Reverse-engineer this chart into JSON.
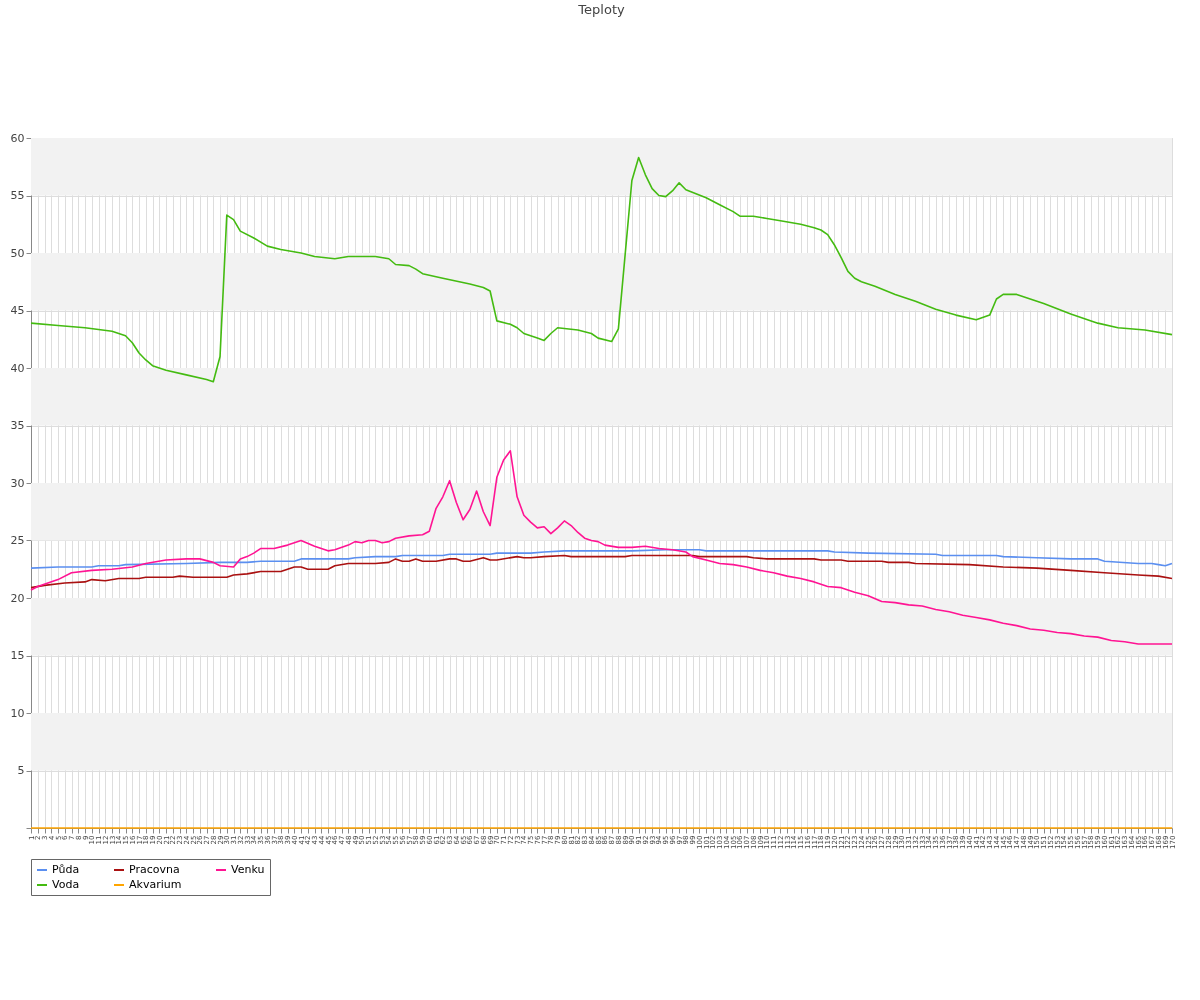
{
  "chart_data": {
    "type": "line",
    "title": "Teploty",
    "xlim": [
      1,
      170
    ],
    "xticks": [
      1,
      2,
      3,
      4,
      5,
      6,
      7,
      8,
      9,
      10,
      11,
      12,
      13,
      14,
      15,
      16,
      17,
      18,
      19,
      20,
      21,
      22,
      23,
      24,
      25,
      26,
      27,
      28,
      29,
      30,
      31,
      32,
      33,
      34,
      35,
      36,
      37,
      38,
      39,
      40,
      41,
      42,
      43,
      44,
      45,
      46,
      47,
      48,
      49,
      50,
      51,
      52,
      53,
      54,
      55,
      56,
      57,
      58,
      59,
      60,
      61,
      62,
      63,
      64,
      65,
      66,
      67,
      68,
      69,
      70,
      71,
      72,
      73,
      74,
      75,
      76,
      77,
      78,
      79,
      80,
      81,
      82,
      83,
      84,
      85,
      86,
      87,
      88,
      89,
      90,
      91,
      92,
      93,
      94,
      95,
      96,
      97,
      98,
      99,
      100,
      101,
      102,
      103,
      104,
      105,
      106,
      107,
      108,
      109,
      110,
      111,
      112,
      113,
      114,
      115,
      116,
      117,
      118,
      119,
      120,
      121,
      122,
      123,
      124,
      125,
      126,
      127,
      128,
      129,
      130,
      131,
      132,
      133,
      134,
      135,
      136,
      137,
      138,
      139,
      140,
      141,
      142,
      143,
      144,
      145,
      146,
      147,
      148,
      149,
      150,
      151,
      152,
      153,
      154,
      155,
      156,
      157,
      158,
      159,
      160,
      161,
      162,
      163,
      164,
      165,
      166,
      167,
      168,
      169,
      170
    ],
    "ylim": [
      0,
      60
    ],
    "yticks": [
      {
        "value": 0,
        "label": null
      },
      5,
      10,
      15,
      20,
      25,
      30,
      35,
      40,
      45,
      50,
      55,
      60
    ],
    "grid": true,
    "legend": "bottom",
    "line_style": "solid",
    "bands": [
      {
        "axis": "y",
        "from": 5,
        "to": 10,
        "color": "#f2f2f2"
      },
      {
        "axis": "y",
        "from": 15,
        "to": 20,
        "color": "#f2f2f2"
      },
      {
        "axis": "y",
        "from": 25,
        "to": 30,
        "color": "#f2f2f2"
      },
      {
        "axis": "y",
        "from": 35,
        "to": 40,
        "color": "#f2f2f2"
      },
      {
        "axis": "y",
        "from": 45,
        "to": 50,
        "color": "#f2f2f2"
      },
      {
        "axis": "y",
        "from": 55,
        "to": 60,
        "color": "#f2f2f2"
      }
    ],
    "series": [
      {
        "name": "Půda",
        "color": "#5b8ff0",
        "x": [
          1,
          5,
          10,
          11,
          14,
          15,
          24,
          29,
          33,
          35,
          40,
          41,
          48,
          49,
          52,
          55,
          56,
          62,
          63,
          69,
          70,
          75,
          77,
          80,
          90,
          95,
          100,
          101,
          119,
          120,
          125,
          135,
          136,
          144,
          145,
          150,
          155,
          159,
          160,
          165,
          167,
          168,
          169,
          170
        ],
        "values": [
          22.6,
          22.7,
          22.7,
          22.8,
          22.8,
          22.9,
          23.0,
          23.1,
          23.1,
          23.2,
          23.2,
          23.4,
          23.4,
          23.5,
          23.6,
          23.6,
          23.7,
          23.7,
          23.8,
          23.8,
          23.9,
          23.9,
          24.0,
          24.1,
          24.1,
          24.2,
          24.2,
          24.1,
          24.1,
          24.0,
          23.9,
          23.8,
          23.7,
          23.7,
          23.6,
          23.5,
          23.4,
          23.4,
          23.2,
          23.0,
          23.0,
          22.9,
          22.8,
          23.0
        ]
      },
      {
        "name": "Pracovna",
        "color": "#aa1111",
        "x": [
          1,
          3,
          6,
          9,
          10,
          12,
          14,
          17,
          18,
          22,
          23,
          25,
          30,
          31,
          33,
          35,
          38,
          39,
          40,
          41,
          42,
          45,
          46,
          48,
          52,
          54,
          55,
          56,
          57,
          58,
          59,
          61,
          63,
          64,
          65,
          66,
          68,
          69,
          70,
          73,
          74,
          75,
          77,
          80,
          81,
          89,
          90,
          99,
          100,
          107,
          108,
          110,
          117,
          118,
          121,
          122,
          127,
          128,
          131,
          132,
          140,
          145,
          150,
          155,
          160,
          165,
          168,
          170
        ],
        "values": [
          20.9,
          21.1,
          21.3,
          21.4,
          21.6,
          21.5,
          21.7,
          21.7,
          21.8,
          21.8,
          21.9,
          21.8,
          21.8,
          22.0,
          22.1,
          22.3,
          22.3,
          22.5,
          22.7,
          22.7,
          22.5,
          22.5,
          22.8,
          23.0,
          23.0,
          23.1,
          23.4,
          23.2,
          23.2,
          23.4,
          23.2,
          23.2,
          23.4,
          23.4,
          23.2,
          23.2,
          23.5,
          23.3,
          23.3,
          23.6,
          23.5,
          23.5,
          23.6,
          23.7,
          23.6,
          23.6,
          23.7,
          23.7,
          23.6,
          23.6,
          23.5,
          23.4,
          23.4,
          23.3,
          23.3,
          23.2,
          23.2,
          23.1,
          23.1,
          23.0,
          22.9,
          22.7,
          22.6,
          22.4,
          22.2,
          22.0,
          21.9,
          21.7
        ]
      },
      {
        "name": "Venku",
        "color": "#ff1493",
        "x": [
          1,
          2,
          5,
          7,
          10,
          13,
          16,
          18,
          21,
          24,
          26,
          28,
          29,
          31,
          32,
          33,
          34,
          35,
          37,
          39,
          41,
          43,
          45,
          46,
          48,
          49,
          50,
          51,
          52,
          53,
          54,
          55,
          57,
          59,
          60,
          61,
          62,
          63,
          64,
          65,
          66,
          67,
          68,
          69,
          70,
          71,
          72,
          73,
          74,
          75,
          76,
          77,
          78,
          79,
          80,
          81,
          82,
          83,
          84,
          85,
          86,
          88,
          90,
          92,
          94,
          96,
          98,
          99,
          101,
          103,
          105,
          107,
          109,
          111,
          113,
          115,
          117,
          119,
          121,
          123,
          125,
          127,
          129,
          131,
          133,
          135,
          137,
          139,
          141,
          143,
          145,
          147,
          149,
          151,
          153,
          155,
          157,
          159,
          161,
          163,
          165,
          167,
          170
        ],
        "values": [
          20.7,
          21.0,
          21.6,
          22.2,
          22.4,
          22.5,
          22.7,
          23.0,
          23.3,
          23.4,
          23.4,
          23.1,
          22.8,
          22.7,
          23.4,
          23.6,
          23.9,
          24.3,
          24.3,
          24.6,
          25.0,
          24.5,
          24.1,
          24.2,
          24.6,
          24.9,
          24.8,
          25.0,
          25.0,
          24.8,
          24.9,
          25.2,
          25.4,
          25.5,
          25.8,
          27.8,
          28.8,
          30.2,
          28.3,
          26.8,
          27.7,
          29.3,
          27.5,
          26.3,
          30.5,
          32.0,
          32.8,
          28.8,
          27.2,
          26.6,
          26.1,
          26.2,
          25.6,
          26.1,
          26.7,
          26.3,
          25.7,
          25.2,
          25.0,
          24.9,
          24.6,
          24.4,
          24.4,
          24.5,
          24.3,
          24.2,
          24.0,
          23.6,
          23.3,
          23.0,
          22.9,
          22.7,
          22.4,
          22.2,
          21.9,
          21.7,
          21.4,
          21.0,
          20.9,
          20.5,
          20.2,
          19.7,
          19.6,
          19.4,
          19.3,
          19.0,
          18.8,
          18.5,
          18.3,
          18.1,
          17.8,
          17.6,
          17.3,
          17.2,
          17.0,
          16.9,
          16.7,
          16.6,
          16.3,
          16.2,
          16.0,
          16.0,
          16.0
        ]
      },
      {
        "name": "Voda",
        "color": "#44bb11",
        "x": [
          1,
          5,
          9,
          13,
          15,
          16,
          17,
          18,
          19,
          21,
          24,
          27,
          28,
          29,
          30,
          31,
          32,
          34,
          36,
          38,
          41,
          43,
          46,
          48,
          52,
          54,
          55,
          57,
          58,
          59,
          62,
          66,
          68,
          69,
          70,
          72,
          73,
          74,
          76,
          77,
          78,
          79,
          82,
          84,
          85,
          87,
          88,
          90,
          91,
          92,
          93,
          94,
          95,
          96,
          97,
          98,
          101,
          103,
          105,
          106,
          108,
          110,
          112,
          115,
          117,
          118,
          119,
          120,
          121,
          122,
          123,
          124,
          126,
          129,
          132,
          135,
          138,
          141,
          143,
          144,
          145,
          147,
          151,
          155,
          159,
          162,
          166,
          170
        ],
        "values": [
          43.9,
          43.7,
          43.5,
          43.2,
          42.8,
          42.2,
          41.3,
          40.7,
          40.2,
          39.8,
          39.4,
          39.0,
          38.8,
          41.0,
          53.3,
          52.9,
          51.9,
          51.3,
          50.6,
          50.3,
          50.0,
          49.7,
          49.5,
          49.7,
          49.7,
          49.5,
          49.0,
          48.9,
          48.6,
          48.2,
          47.8,
          47.3,
          47.0,
          46.7,
          44.1,
          43.8,
          43.5,
          43.0,
          42.6,
          42.4,
          43.0,
          43.5,
          43.3,
          43.0,
          42.6,
          42.3,
          43.4,
          56.3,
          58.3,
          56.8,
          55.6,
          55.0,
          54.9,
          55.4,
          56.1,
          55.5,
          54.8,
          54.2,
          53.6,
          53.2,
          53.2,
          53.0,
          52.8,
          52.5,
          52.2,
          52.0,
          51.6,
          50.7,
          49.6,
          48.4,
          47.8,
          47.5,
          47.1,
          46.4,
          45.8,
          45.1,
          44.6,
          44.2,
          44.6,
          46.0,
          46.4,
          46.4,
          45.6,
          44.7,
          43.9,
          43.5,
          43.3,
          42.9
        ]
      },
      {
        "name": "Akvarium",
        "color": "#ffa500",
        "x": [
          1,
          170
        ],
        "values": [
          0,
          0
        ]
      }
    ]
  }
}
